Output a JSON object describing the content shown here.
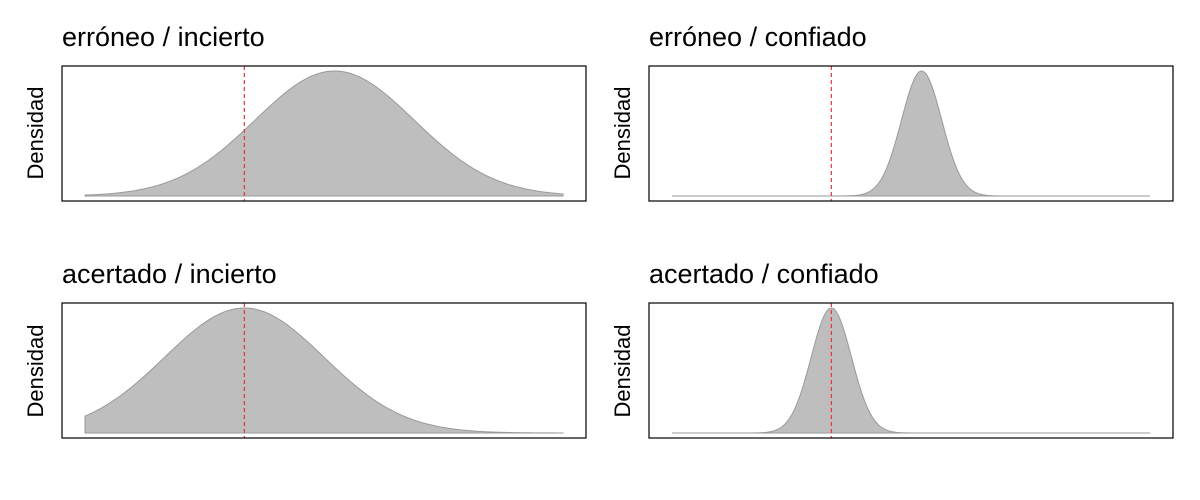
{
  "chart_data": [
    {
      "type": "area",
      "title": "erróneo / incierto",
      "ylabel": "Densidad",
      "xlim": [
        -3,
        6
      ],
      "distribution": {
        "mean": 1.7,
        "sd": 1.5
      },
      "reference_x": 0,
      "fill_color": "#bebebe",
      "outline_color": "#9a9a9a",
      "reference_color": "#e8333a"
    },
    {
      "type": "area",
      "title": "erróneo / confiado",
      "ylabel": "Densidad",
      "xlim": [
        -3,
        6
      ],
      "distribution": {
        "mean": 1.7,
        "sd": 0.38
      },
      "reference_x": 0,
      "fill_color": "#bebebe",
      "outline_color": "#9a9a9a",
      "reference_color": "#e8333a"
    },
    {
      "type": "area",
      "title": "acertado / incierto",
      "ylabel": "Densidad",
      "xlim": [
        -3,
        6
      ],
      "distribution": {
        "mean": 0,
        "sd": 1.5
      },
      "reference_x": 0,
      "fill_color": "#bebebe",
      "outline_color": "#9a9a9a",
      "reference_color": "#e8333a"
    },
    {
      "type": "area",
      "title": "acertado / confiado",
      "ylabel": "Densidad",
      "xlim": [
        -3,
        6
      ],
      "distribution": {
        "mean": 0,
        "sd": 0.38
      },
      "reference_x": 0,
      "fill_color": "#bebebe",
      "outline_color": "#9a9a9a",
      "reference_color": "#e8333a"
    }
  ]
}
